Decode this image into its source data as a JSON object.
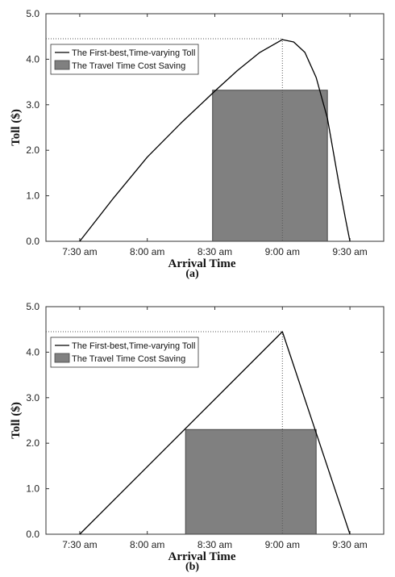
{
  "chart_data": [
    {
      "type": "line",
      "panel_label": "(a)",
      "xlabel": "Arrival Time",
      "ylabel": "Toll ($)",
      "x_ticks": [
        "7:30 am",
        "8:00 am",
        "8:30 am",
        "9:00 am",
        "9:30 am"
      ],
      "y_ticks": [
        "0.0",
        "1.0",
        "2.0",
        "3.0",
        "4.0",
        "5.0"
      ],
      "xlim": [
        "7:15 am",
        "9:45 am"
      ],
      "ylim": [
        0,
        5
      ],
      "legend": [
        "The First-best,Time-varying Toll",
        "The Travel Time Cost Saving"
      ],
      "legend_position": "top-left",
      "peak": {
        "time": "9:00 am",
        "toll": 4.45
      },
      "series": [
        {
          "name": "The First-best,Time-varying Toll",
          "x": [
            "7:30 am",
            "7:45 am",
            "8:00 am",
            "8:15 am",
            "8:30 am",
            "8:40 am",
            "8:50 am",
            "9:00 am",
            "9:05 am",
            "9:10 am",
            "9:15 am",
            "9:20 am",
            "9:25 am",
            "9:28 am",
            "9:30 am"
          ],
          "y": [
            0.0,
            0.95,
            1.85,
            2.6,
            3.3,
            3.75,
            4.15,
            4.43,
            4.38,
            4.15,
            3.6,
            2.7,
            1.3,
            0.5,
            0.0
          ]
        }
      ],
      "shaded_region": {
        "name": "The Travel Time Cost Saving",
        "x_start": "8:29 am",
        "x_end": "9:20 am",
        "toll": 3.32
      }
    },
    {
      "type": "line",
      "panel_label": "(b)",
      "xlabel": "Arrival Time",
      "ylabel": "Toll ($)",
      "x_ticks": [
        "7:30 am",
        "8:00 am",
        "8:30 am",
        "9:00 am",
        "9:30 am"
      ],
      "y_ticks": [
        "0.0",
        "1.0",
        "2.0",
        "3.0",
        "4.0",
        "5.0"
      ],
      "xlim": [
        "7:15 am",
        "9:45 am"
      ],
      "ylim": [
        0,
        5
      ],
      "legend": [
        "The First-best,Time-varying Toll",
        "The Travel Time Cost Saving"
      ],
      "legend_position": "top-left",
      "peak": {
        "time": "9:00 am",
        "toll": 4.45
      },
      "series": [
        {
          "name": "The First-best,Time-varying Toll",
          "x": [
            "7:30 am",
            "9:00 am",
            "9:30 am"
          ],
          "y": [
            0.0,
            4.45,
            0.0
          ]
        }
      ],
      "shaded_region": {
        "name": "The Travel Time Cost Saving",
        "x_start": "8:17 am",
        "x_end": "9:15 am",
        "toll": 2.3
      }
    }
  ],
  "colors": {
    "line": "#000000",
    "shade": "#808080",
    "guide": "#555555"
  }
}
